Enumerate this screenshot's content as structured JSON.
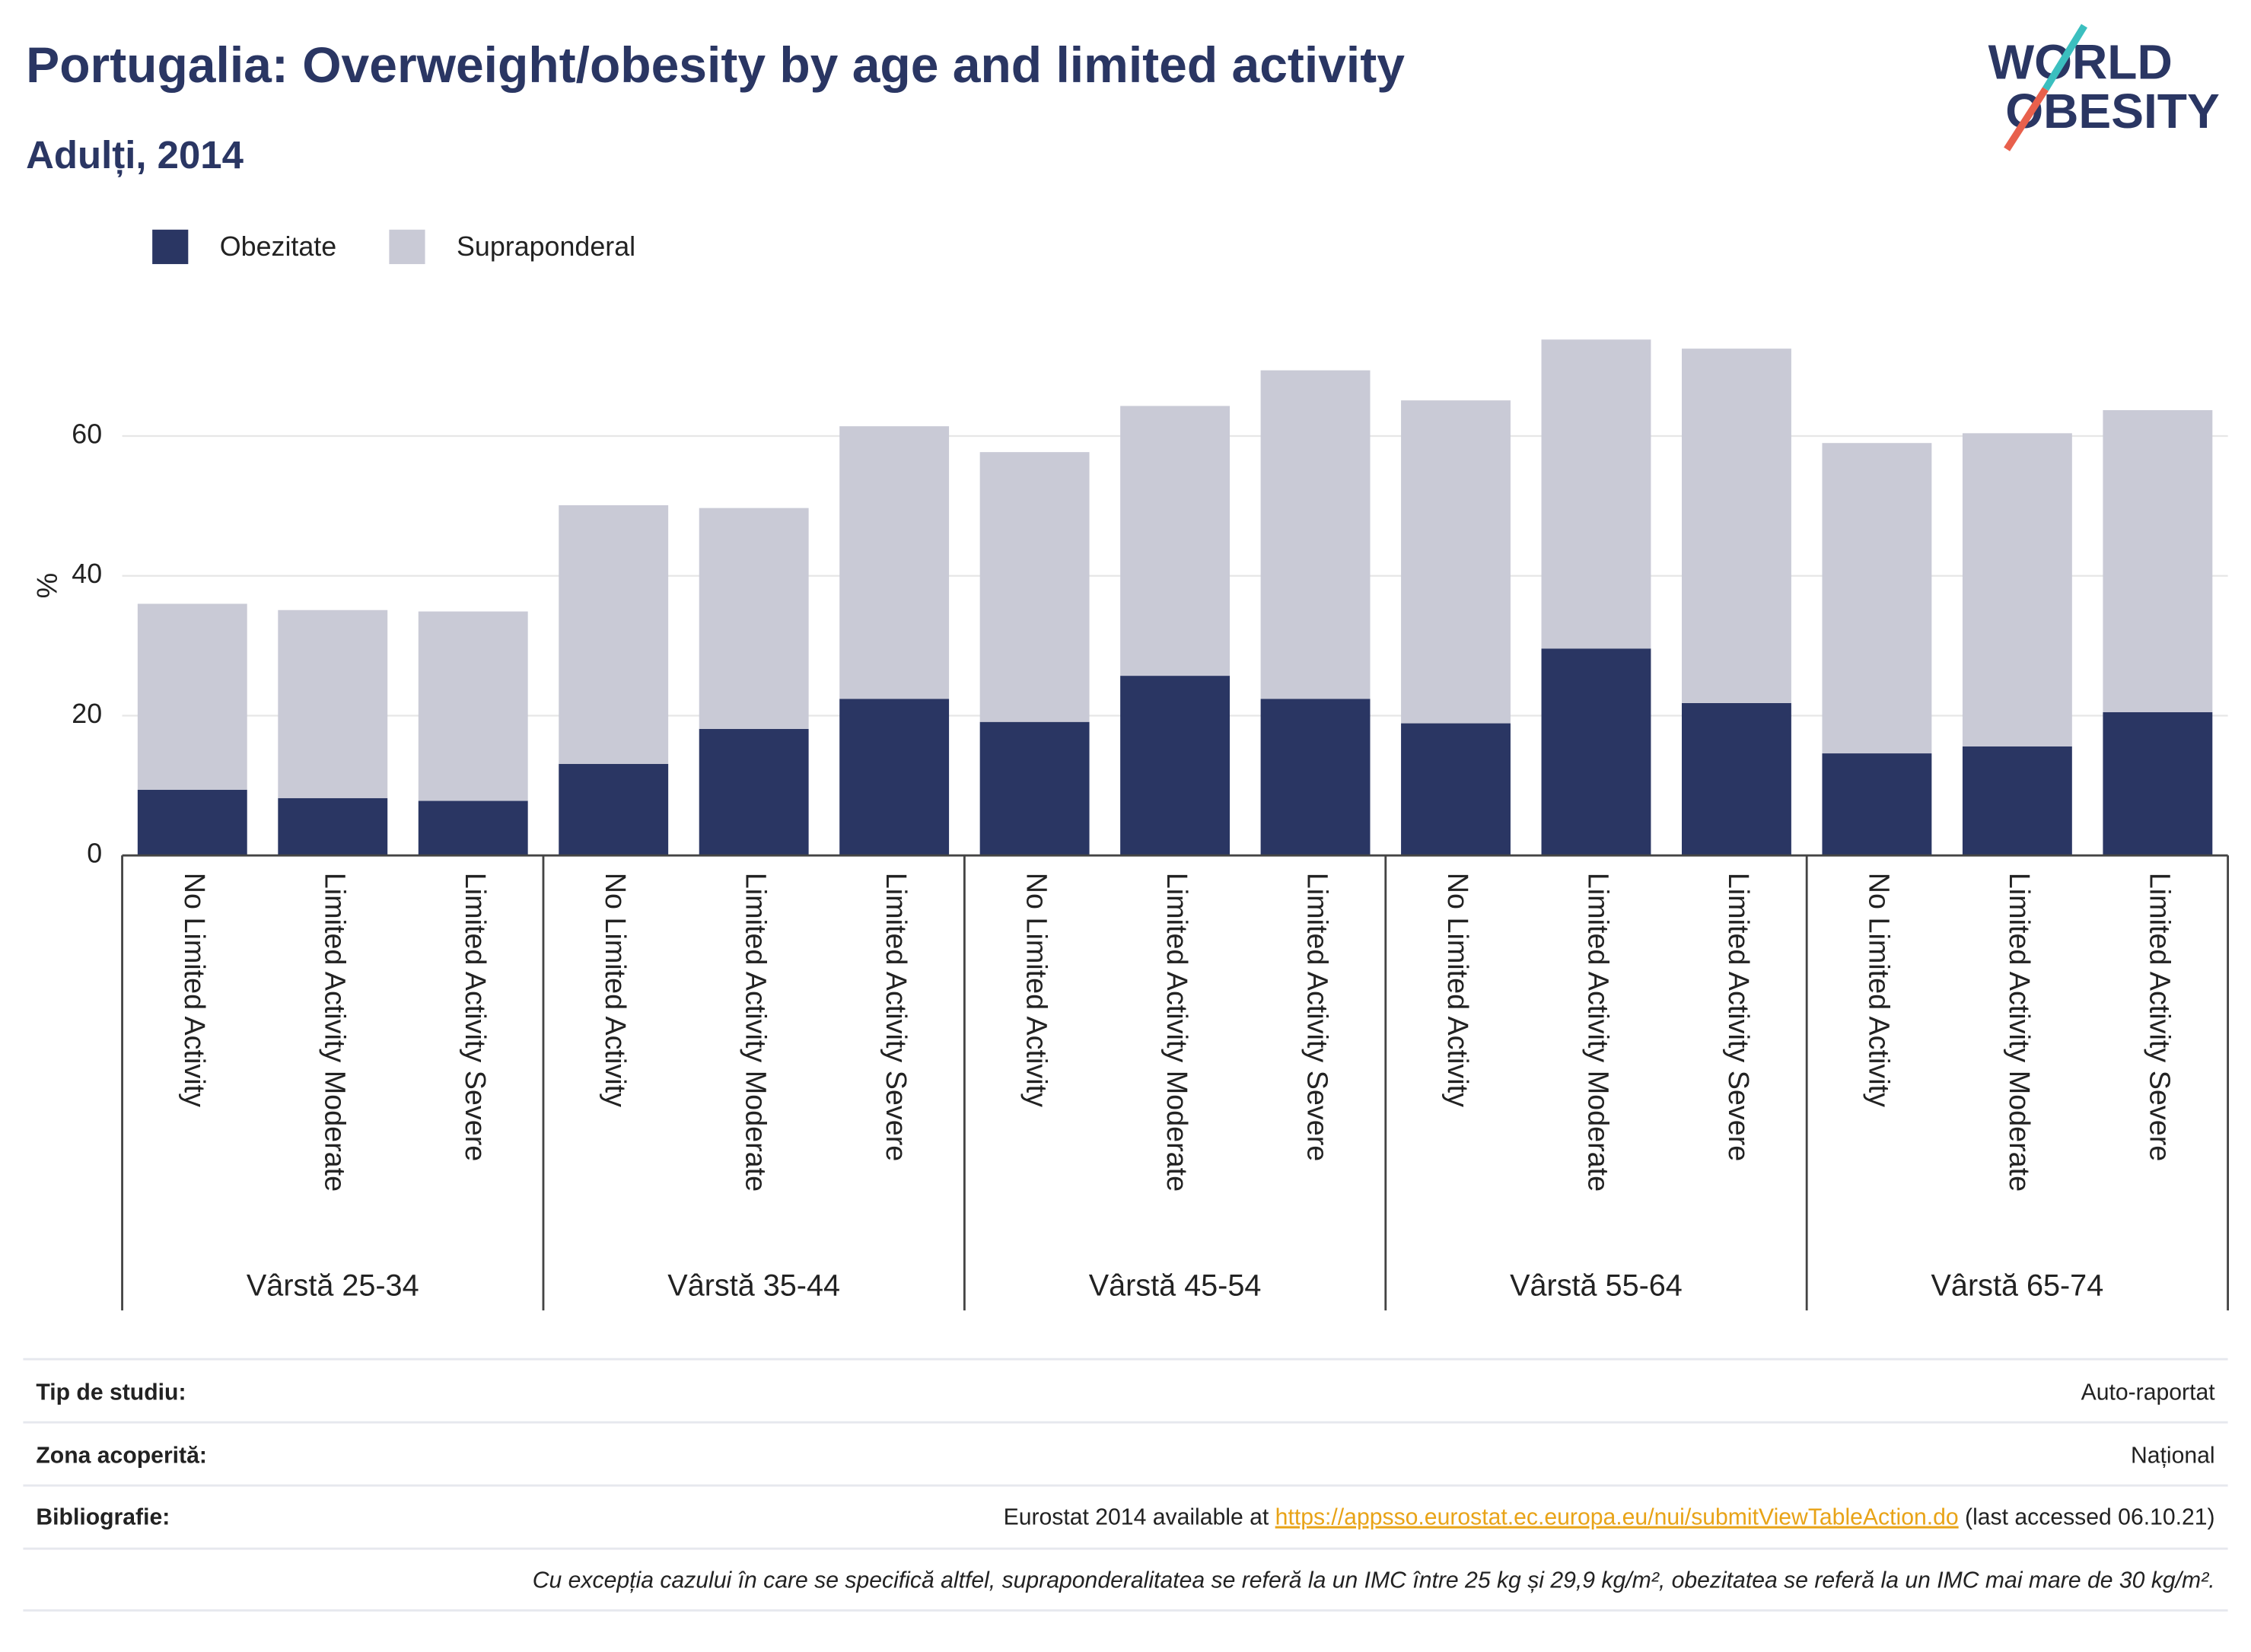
{
  "chart_data": {
    "type": "stacked-bar",
    "title": "Portugalia: Overweight/obesity by age and limited activity",
    "subtitle": "Adulți, 2014",
    "y_label": "%",
    "groups": [
      "Vârstă 25-34",
      "Vârstă 35-44",
      "Vârstă 45-54",
      "Vârstă 55-64",
      "Vârstă 65-74"
    ],
    "categories": [
      "No Limited Activity",
      "Limited Activity Moderate",
      "Limited Activity Severe",
      "No Limited Activity",
      "Limited Activity Moderate",
      "Limited Activity Severe",
      "No Limited Activity",
      "Limited Activity Moderate",
      "Limited Activity Severe",
      "No Limited Activity",
      "Limited Activity Moderate",
      "Limited Activity Severe",
      "No Limited Activity",
      "Limited Activity Moderate",
      "Limited Activity Severe"
    ],
    "series": [
      {
        "name": "Obezitate",
        "color": "#2a3663",
        "values": [
          9.4,
          8.2,
          7.8,
          13.1,
          18.1,
          22.4,
          19.1,
          25.7,
          22.4,
          18.9,
          29.6,
          21.8,
          14.6,
          15.6,
          20.5
        ]
      },
      {
        "name": "Supraponderal",
        "color": "#c9cad6",
        "values": [
          26.6,
          26.9,
          27.1,
          37.0,
          31.6,
          39.0,
          38.6,
          38.6,
          47.0,
          46.2,
          44.2,
          50.7,
          44.4,
          44.8,
          43.2
        ]
      }
    ],
    "ylim": [
      0,
      77
    ],
    "yticks": [
      0,
      20,
      40,
      60
    ],
    "grid": true
  },
  "logo": {
    "line1": "WORLD",
    "line2": "OBESITY"
  },
  "footer": {
    "rows": [
      {
        "label": "Tip de studiu:",
        "value": "Auto-raportat"
      },
      {
        "label": "Zona acoperită:",
        "value": "Național"
      }
    ],
    "bibliography": {
      "label": "Bibliografie:",
      "prefix": "Eurostat 2014 available at ",
      "link": "https://appsso.eurostat.ec.europa.eu/nui/submitViewTableAction.do",
      "suffix": " (last accessed 06.10.21)"
    },
    "note": "Cu excepția cazului în care se specifică altfel, supraponderalitatea se referă la un IMC între 25 kg și 29,9 kg/m², obezitatea se referă la un IMC mai mare de 30 kg/m²."
  }
}
